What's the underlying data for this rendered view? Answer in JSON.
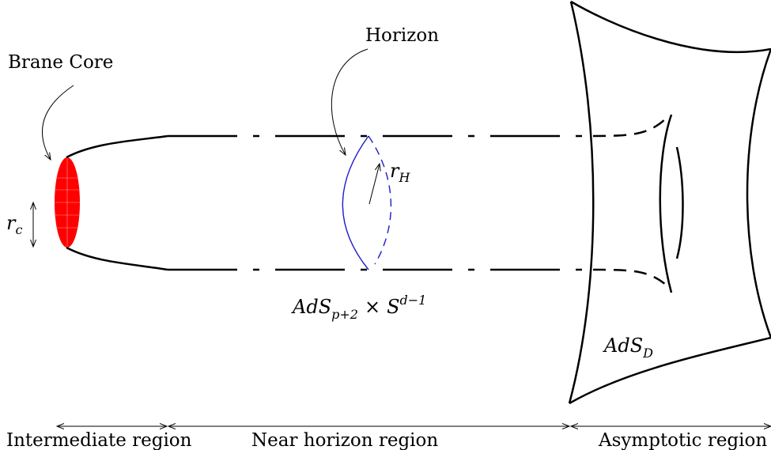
{
  "labels": {
    "brane_core": "Brane Core",
    "horizon": "Horizon",
    "r_c_base": "r",
    "r_c_sub": "c",
    "r_h_base": "r",
    "r_h_sub": "H",
    "near_geom_base": "AdS",
    "near_geom_sub": "p+2",
    "near_geom_times": "×",
    "near_geom_sphere": "S",
    "near_geom_sup": "d−1",
    "asym_geom_base": "AdS",
    "asym_geom_sub": "D"
  },
  "regions": [
    {
      "label": "Intermediate region"
    },
    {
      "label": "Near horizon region"
    },
    {
      "label": "Asymptotic region"
    }
  ],
  "colors": {
    "line": "#000000",
    "brane_core": "#ff0000",
    "horizon": "#1a1acc"
  }
}
